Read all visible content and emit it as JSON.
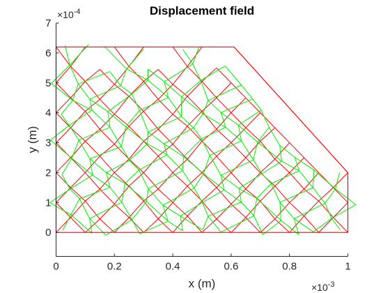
{
  "chart_data": {
    "type": "mesh",
    "title": "Displacement field",
    "xlabel": "x (m)",
    "ylabel": "y (m)",
    "x_exponent": "×10",
    "x_exponent_power": "-3",
    "y_exponent": "×10",
    "y_exponent_power": "-4",
    "xlim": [
      0,
      1
    ],
    "ylim": [
      -0.8,
      7
    ],
    "x_unit_scale": "1e-3",
    "y_unit_scale": "1e-4",
    "x_ticks": [
      0,
      0.2,
      0.4,
      0.6,
      0.8,
      1
    ],
    "x_tick_labels": [
      "0",
      "0.2",
      "0.4",
      "0.6",
      "0.8",
      "1"
    ],
    "y_ticks": [
      0,
      1,
      2,
      3,
      4,
      5,
      6,
      7
    ],
    "y_tick_labels": [
      "0",
      "1",
      "2",
      "3",
      "4",
      "5",
      "6",
      "7"
    ],
    "grid": false,
    "domain_outline": [
      [
        0,
        0
      ],
      [
        1,
        0
      ],
      [
        1,
        2
      ],
      [
        0.61,
        6.2
      ],
      [
        0,
        6.2
      ]
    ],
    "series": [
      {
        "color": "#ff0000",
        "role": "undeformed mesh"
      },
      {
        "color": "#00ee00",
        "role": "deformed mesh"
      }
    ],
    "mesh_nodes": [
      [
        0,
        0
      ],
      [
        0.1,
        0
      ],
      [
        0.2,
        0
      ],
      [
        0.3,
        0
      ],
      [
        0.4,
        0
      ],
      [
        0.5,
        0
      ],
      [
        0.6,
        0
      ],
      [
        0.7,
        0
      ],
      [
        0.8,
        0
      ],
      [
        0.9,
        0
      ],
      [
        1,
        0
      ],
      [
        0.05,
        0.5
      ],
      [
        0.15,
        0.45
      ],
      [
        0.25,
        0.5
      ],
      [
        0.35,
        0.45
      ],
      [
        0.45,
        0.55
      ],
      [
        0.55,
        0.45
      ],
      [
        0.65,
        0.5
      ],
      [
        0.75,
        0.45
      ],
      [
        0.85,
        0.55
      ],
      [
        0.95,
        0.5
      ],
      [
        0,
        1
      ],
      [
        0.1,
        1.05
      ],
      [
        0.2,
        0.95
      ],
      [
        0.3,
        1.05
      ],
      [
        0.4,
        1
      ],
      [
        0.5,
        1.05
      ],
      [
        0.6,
        0.95
      ],
      [
        0.7,
        1.05
      ],
      [
        0.8,
        1
      ],
      [
        0.9,
        1.05
      ],
      [
        1,
        1
      ],
      [
        0.05,
        1.5
      ],
      [
        0.15,
        1.45
      ],
      [
        0.25,
        1.55
      ],
      [
        0.35,
        1.45
      ],
      [
        0.45,
        1.55
      ],
      [
        0.55,
        1.5
      ],
      [
        0.65,
        1.45
      ],
      [
        0.75,
        1.55
      ],
      [
        0.85,
        1.45
      ],
      [
        0.95,
        1.5
      ],
      [
        0,
        2
      ],
      [
        0.1,
        2
      ],
      [
        0.2,
        2
      ],
      [
        0.3,
        2
      ],
      [
        0.4,
        2
      ],
      [
        0.5,
        2
      ],
      [
        0.6,
        2
      ],
      [
        0.7,
        2
      ],
      [
        0.8,
        2
      ],
      [
        0.9,
        2
      ],
      [
        1,
        2
      ],
      [
        0.05,
        2.5
      ],
      [
        0.15,
        2.55
      ],
      [
        0.25,
        2.45
      ],
      [
        0.35,
        2.55
      ],
      [
        0.45,
        2.45
      ],
      [
        0.55,
        2.55
      ],
      [
        0.65,
        2.5
      ],
      [
        0.75,
        2.45
      ],
      [
        0.85,
        2.5
      ],
      [
        0,
        3
      ],
      [
        0.1,
        3.05
      ],
      [
        0.2,
        2.95
      ],
      [
        0.3,
        3.05
      ],
      [
        0.4,
        2.95
      ],
      [
        0.5,
        3.05
      ],
      [
        0.6,
        3
      ],
      [
        0.7,
        3.05
      ],
      [
        0.8,
        3
      ],
      [
        0.05,
        3.5
      ],
      [
        0.15,
        3.45
      ],
      [
        0.25,
        3.55
      ],
      [
        0.35,
        3.45
      ],
      [
        0.45,
        3.55
      ],
      [
        0.55,
        3.45
      ],
      [
        0.65,
        3.5
      ],
      [
        0.75,
        3.5
      ],
      [
        0,
        4
      ],
      [
        0.1,
        4.05
      ],
      [
        0.2,
        3.95
      ],
      [
        0.3,
        4.05
      ],
      [
        0.4,
        3.95
      ],
      [
        0.5,
        4.05
      ],
      [
        0.6,
        4
      ],
      [
        0.7,
        4
      ],
      [
        0.05,
        4.5
      ],
      [
        0.15,
        4.45
      ],
      [
        0.25,
        4.55
      ],
      [
        0.35,
        4.45
      ],
      [
        0.45,
        4.55
      ],
      [
        0.55,
        4.5
      ],
      [
        0.65,
        4.5
      ],
      [
        0,
        5
      ],
      [
        0.1,
        5.05
      ],
      [
        0.2,
        4.95
      ],
      [
        0.3,
        5.05
      ],
      [
        0.4,
        4.95
      ],
      [
        0.5,
        5.05
      ],
      [
        0.6,
        5
      ],
      [
        0.05,
        5.55
      ],
      [
        0.15,
        5.45
      ],
      [
        0.25,
        5.55
      ],
      [
        0.35,
        5.45
      ],
      [
        0.45,
        5.55
      ],
      [
        0.55,
        5.5
      ],
      [
        0,
        6.2
      ],
      [
        0.1,
        6.2
      ],
      [
        0.2,
        6.2
      ],
      [
        0.3,
        6.2
      ],
      [
        0.4,
        6.2
      ],
      [
        0.5,
        6.2
      ],
      [
        0.61,
        6.2
      ]
    ]
  }
}
